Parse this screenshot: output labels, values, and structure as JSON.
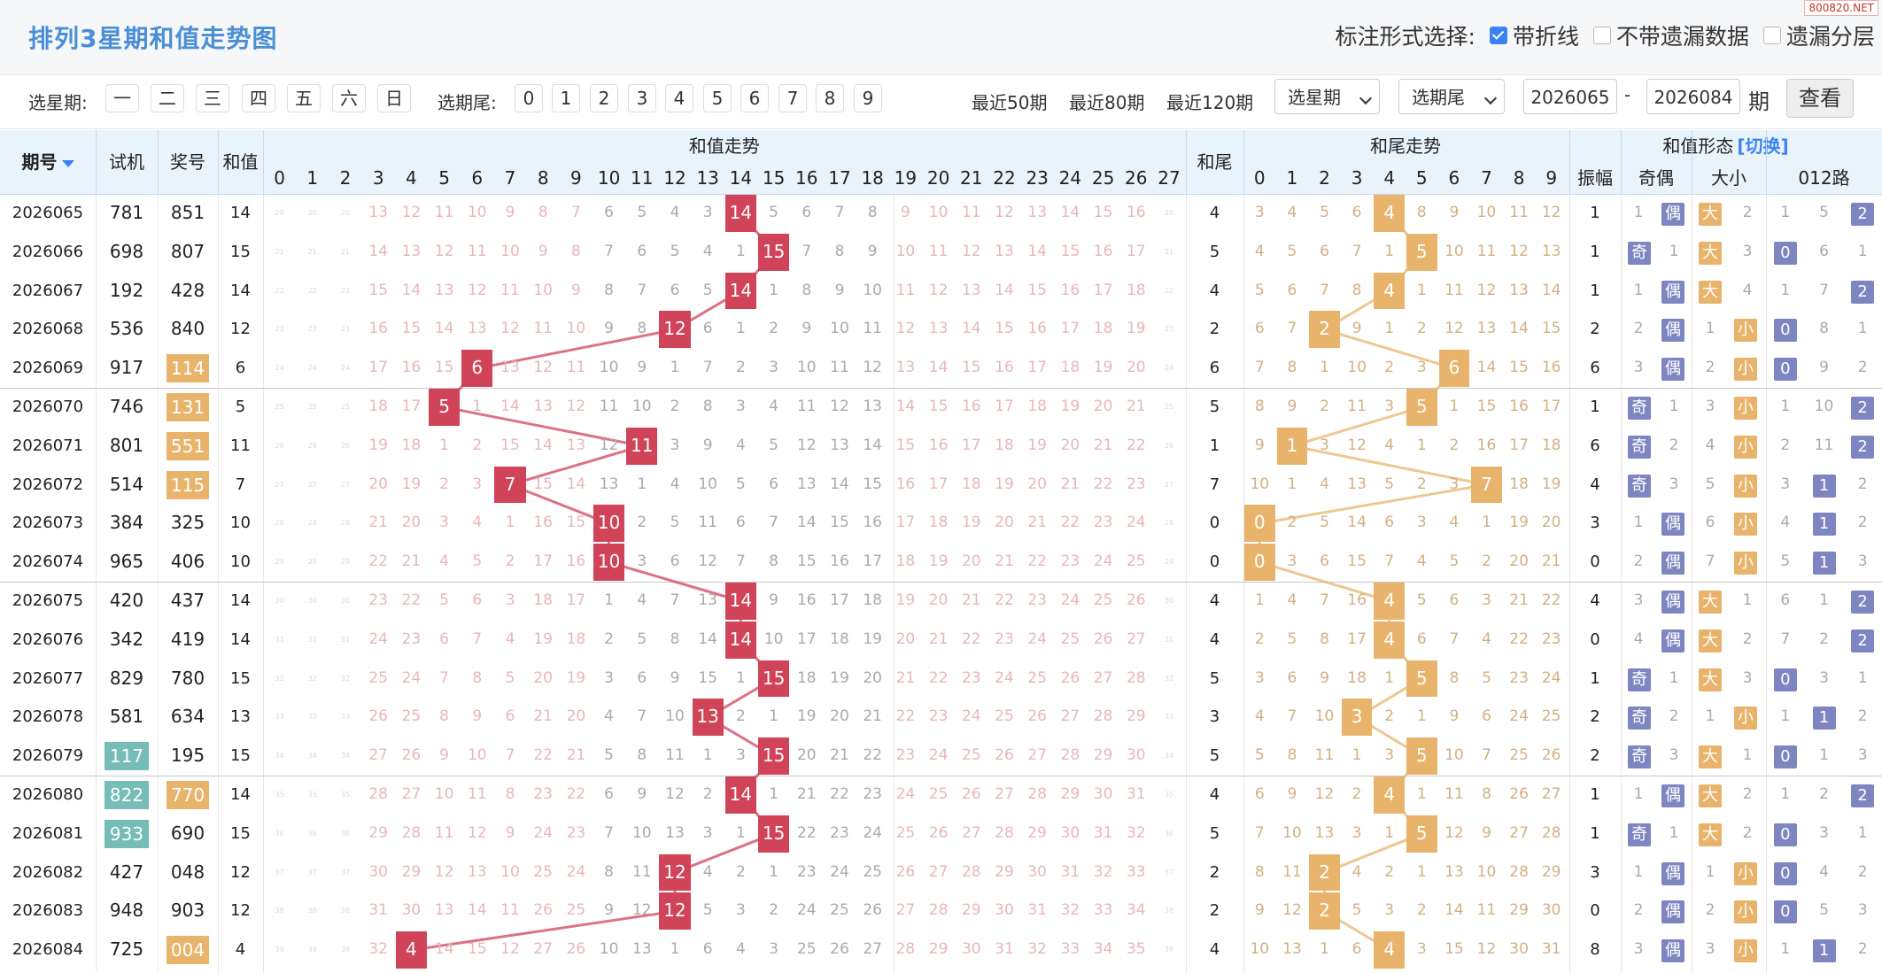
{
  "header": {
    "title": "排列3星期和值走势图",
    "watermark": "800820.NET",
    "options_label": "标注形式选择:",
    "options": [
      {
        "label": "带折线",
        "checked": true
      },
      {
        "label": "不带遗漏数据",
        "checked": false
      },
      {
        "label": "遗漏分层",
        "checked": false
      }
    ]
  },
  "filters": {
    "weekday_label": "选星期:",
    "weekdays": [
      "一",
      "二",
      "三",
      "四",
      "五",
      "六",
      "日"
    ],
    "tail_label": "选期尾:",
    "tails": [
      "0",
      "1",
      "2",
      "3",
      "4",
      "5",
      "6",
      "7",
      "8",
      "9"
    ],
    "recent": [
      "最近50期",
      "最近80期",
      "最近120期"
    ],
    "select_weekday": "选星期",
    "select_tail": "选期尾",
    "from_period": "2026065",
    "dash": "-",
    "to_period": "2026084",
    "period_unit": "期",
    "view_button": "查看"
  },
  "table": {
    "headers": {
      "period": "期号",
      "test": "试机",
      "draw": "奖号",
      "sum": "和值",
      "sum_trend": "和值走势",
      "tail": "和尾",
      "tail_trend": "和尾走势",
      "shape": "和值形态",
      "switch": "[切换]",
      "amplitude": "振幅",
      "odd_even": "奇偶",
      "big_small": "大小",
      "road": "012路"
    },
    "sum_cols": [
      "0",
      "1",
      "2",
      "3",
      "4",
      "5",
      "6",
      "7",
      "8",
      "9",
      "10",
      "11",
      "12",
      "13",
      "14",
      "15",
      "16",
      "17",
      "18",
      "19",
      "20",
      "21",
      "22",
      "23",
      "24",
      "25",
      "26",
      "27"
    ],
    "tail_cols": [
      "0",
      "1",
      "2",
      "3",
      "4",
      "5",
      "6",
      "7",
      "8",
      "9"
    ],
    "labels": {
      "odd": "奇",
      "even": "偶",
      "big": "大",
      "small": "小"
    },
    "rows": [
      {
        "p": "2026065",
        "t": "781",
        "d": "851",
        "s": 14,
        "tail": 4,
        "amp": 1,
        "tm": false,
        "dm": false,
        "oeMiss": 1,
        "bsMiss": 2,
        "road": [
          1,
          5,
          2
        ]
      },
      {
        "p": "2026066",
        "t": "698",
        "d": "807",
        "s": 15,
        "tail": 5,
        "amp": 1,
        "tm": false,
        "dm": false,
        "oeMiss": 1,
        "bsMiss": 3,
        "road": [
          0,
          6,
          1
        ]
      },
      {
        "p": "2026067",
        "t": "192",
        "d": "428",
        "s": 14,
        "tail": 4,
        "amp": 1,
        "tm": false,
        "dm": false,
        "oeMiss": 1,
        "bsMiss": 4,
        "road": [
          1,
          7,
          2
        ]
      },
      {
        "p": "2026068",
        "t": "536",
        "d": "840",
        "s": 12,
        "tail": 2,
        "amp": 2,
        "tm": false,
        "dm": false,
        "oeMiss": 2,
        "bsMiss": 1,
        "road": [
          0,
          8,
          1
        ]
      },
      {
        "p": "2026069",
        "t": "917",
        "d": "114",
        "s": 6,
        "tail": 6,
        "amp": 6,
        "tm": false,
        "dm": true,
        "oeMiss": 3,
        "bsMiss": 2,
        "road": [
          0,
          9,
          2
        ]
      },
      {
        "p": "2026070",
        "t": "746",
        "d": "131",
        "s": 5,
        "tail": 5,
        "amp": 1,
        "tm": false,
        "dm": true,
        "oeMiss": 1,
        "bsMiss": 3,
        "road": [
          1,
          10,
          2
        ]
      },
      {
        "p": "2026071",
        "t": "801",
        "d": "551",
        "s": 11,
        "tail": 1,
        "amp": 6,
        "tm": false,
        "dm": true,
        "oeMiss": 2,
        "bsMiss": 4,
        "road": [
          2,
          11,
          2
        ]
      },
      {
        "p": "2026072",
        "t": "514",
        "d": "115",
        "s": 7,
        "tail": 7,
        "amp": 4,
        "tm": false,
        "dm": true,
        "oeMiss": 3,
        "bsMiss": 5,
        "road": [
          3,
          1,
          2
        ]
      },
      {
        "p": "2026073",
        "t": "384",
        "d": "325",
        "s": 10,
        "tail": 0,
        "amp": 3,
        "tm": false,
        "dm": false,
        "oeMiss": 1,
        "bsMiss": 6,
        "road": [
          4,
          1,
          2
        ]
      },
      {
        "p": "2026074",
        "t": "965",
        "d": "406",
        "s": 10,
        "tail": 0,
        "amp": 0,
        "tm": false,
        "dm": false,
        "oeMiss": 2,
        "bsMiss": 7,
        "road": [
          5,
          1,
          3
        ]
      },
      {
        "p": "2026075",
        "t": "420",
        "d": "437",
        "s": 14,
        "tail": 4,
        "amp": 4,
        "tm": false,
        "dm": false,
        "oeMiss": 3,
        "bsMiss": 1,
        "road": [
          6,
          1,
          2
        ]
      },
      {
        "p": "2026076",
        "t": "342",
        "d": "419",
        "s": 14,
        "tail": 4,
        "amp": 0,
        "tm": false,
        "dm": false,
        "oeMiss": 4,
        "bsMiss": 2,
        "road": [
          7,
          2,
          2
        ]
      },
      {
        "p": "2026077",
        "t": "829",
        "d": "780",
        "s": 15,
        "tail": 5,
        "amp": 1,
        "tm": false,
        "dm": false,
        "oeMiss": 1,
        "bsMiss": 3,
        "road": [
          0,
          3,
          1
        ]
      },
      {
        "p": "2026078",
        "t": "581",
        "d": "634",
        "s": 13,
        "tail": 3,
        "amp": 2,
        "tm": false,
        "dm": false,
        "oeMiss": 2,
        "bsMiss": 1,
        "road": [
          1,
          1,
          2
        ]
      },
      {
        "p": "2026079",
        "t": "117",
        "d": "195",
        "s": 15,
        "tail": 5,
        "amp": 2,
        "tm": true,
        "dm": false,
        "oeMiss": 3,
        "bsMiss": 1,
        "road": [
          0,
          1,
          3
        ]
      },
      {
        "p": "2026080",
        "t": "822",
        "d": "770",
        "s": 14,
        "tail": 4,
        "amp": 1,
        "tm": true,
        "dm": true,
        "oeMiss": 1,
        "bsMiss": 2,
        "road": [
          1,
          2,
          2
        ]
      },
      {
        "p": "2026081",
        "t": "933",
        "d": "690",
        "s": 15,
        "tail": 5,
        "amp": 1,
        "tm": true,
        "dm": false,
        "oeMiss": 1,
        "bsMiss": 2,
        "road": [
          0,
          3,
          1
        ]
      },
      {
        "p": "2026082",
        "t": "427",
        "d": "048",
        "s": 12,
        "tail": 2,
        "amp": 3,
        "tm": false,
        "dm": false,
        "oeMiss": 1,
        "bsMiss": 1,
        "road": [
          0,
          4,
          2
        ]
      },
      {
        "p": "2026083",
        "t": "948",
        "d": "903",
        "s": 12,
        "tail": 2,
        "amp": 0,
        "tm": false,
        "dm": false,
        "oeMiss": 2,
        "bsMiss": 2,
        "road": [
          0,
          5,
          3
        ]
      },
      {
        "p": "2026084",
        "t": "725",
        "d": "004",
        "s": 4,
        "tail": 4,
        "amp": 8,
        "tm": false,
        "dm": true,
        "oeMiss": 3,
        "bsMiss": 3,
        "road": [
          1,
          1,
          2
        ]
      }
    ]
  },
  "colors": {
    "sum_hit": "#d14359",
    "tail_hit": "#e8b46c",
    "odd": "#7d86c0",
    "even": "#7d86c0",
    "big": "#e8b46c",
    "small": "#e8b46c",
    "road": "#7d86c0",
    "test_mark": "#76bcb7",
    "draw_mark": "#e8b46c"
  }
}
